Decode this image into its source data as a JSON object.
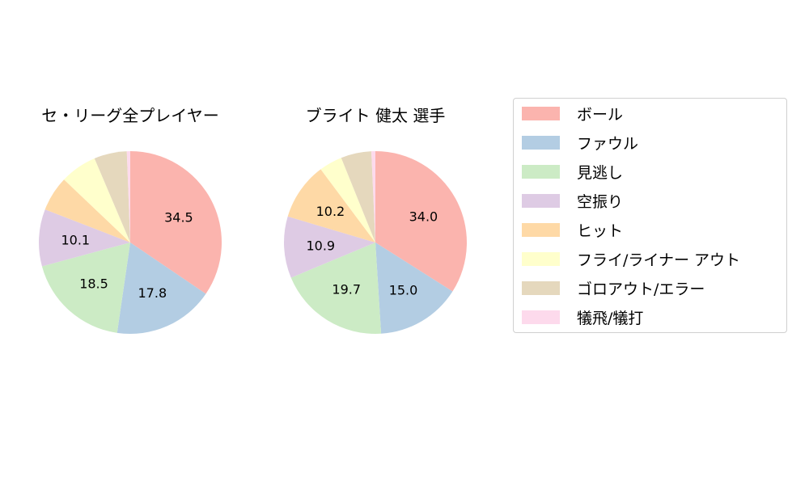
{
  "chart_data": [
    {
      "type": "pie",
      "title": "セ・リーグ全プレイヤー",
      "categories": [
        "ボール",
        "ファウル",
        "見逃し",
        "空振り",
        "ヒット",
        "フライ/ライナー アウト",
        "ゴロアウト/エラー",
        "犠飛/犠打"
      ],
      "values": [
        34.5,
        17.8,
        18.5,
        10.1,
        6.2,
        6.5,
        5.8,
        0.6
      ],
      "labels": [
        "34.5",
        "17.8",
        "18.5",
        "10.1",
        "",
        "",
        "",
        ""
      ],
      "center": [
        161,
        300
      ],
      "radius": 113
    },
    {
      "type": "pie",
      "title": "ブライト 健太  選手",
      "categories": [
        "ボール",
        "ファウル",
        "見逃し",
        "空振り",
        "ヒット",
        "フライ/ライナー アウト",
        "ゴロアウト/エラー",
        "犠飛/犠打"
      ],
      "values": [
        34.0,
        15.0,
        19.7,
        10.9,
        10.2,
        4.1,
        5.4,
        0.7
      ],
      "labels": [
        "34.0",
        "15.0",
        "19.7",
        "10.9",
        "10.2",
        "",
        "",
        ""
      ],
      "center": [
        464,
        300
      ],
      "radius": 113
    }
  ],
  "titles": {
    "left": "セ・リーグ全プレイヤー",
    "right": "ブライト 健太  選手"
  },
  "legend": {
    "items": [
      {
        "label": "ボール",
        "color": "#fbb4ae"
      },
      {
        "label": "ファウル",
        "color": "#b3cde3"
      },
      {
        "label": "見逃し",
        "color": "#ccebc5"
      },
      {
        "label": "空振り",
        "color": "#decbe4"
      },
      {
        "label": "ヒット",
        "color": "#fed9a6"
      },
      {
        "label": "フライ/ライナー アウト",
        "color": "#ffffcc"
      },
      {
        "label": "ゴロアウト/エラー",
        "color": "#e5d8bd"
      },
      {
        "label": "犠飛/犠打",
        "color": "#fddaec"
      }
    ]
  }
}
